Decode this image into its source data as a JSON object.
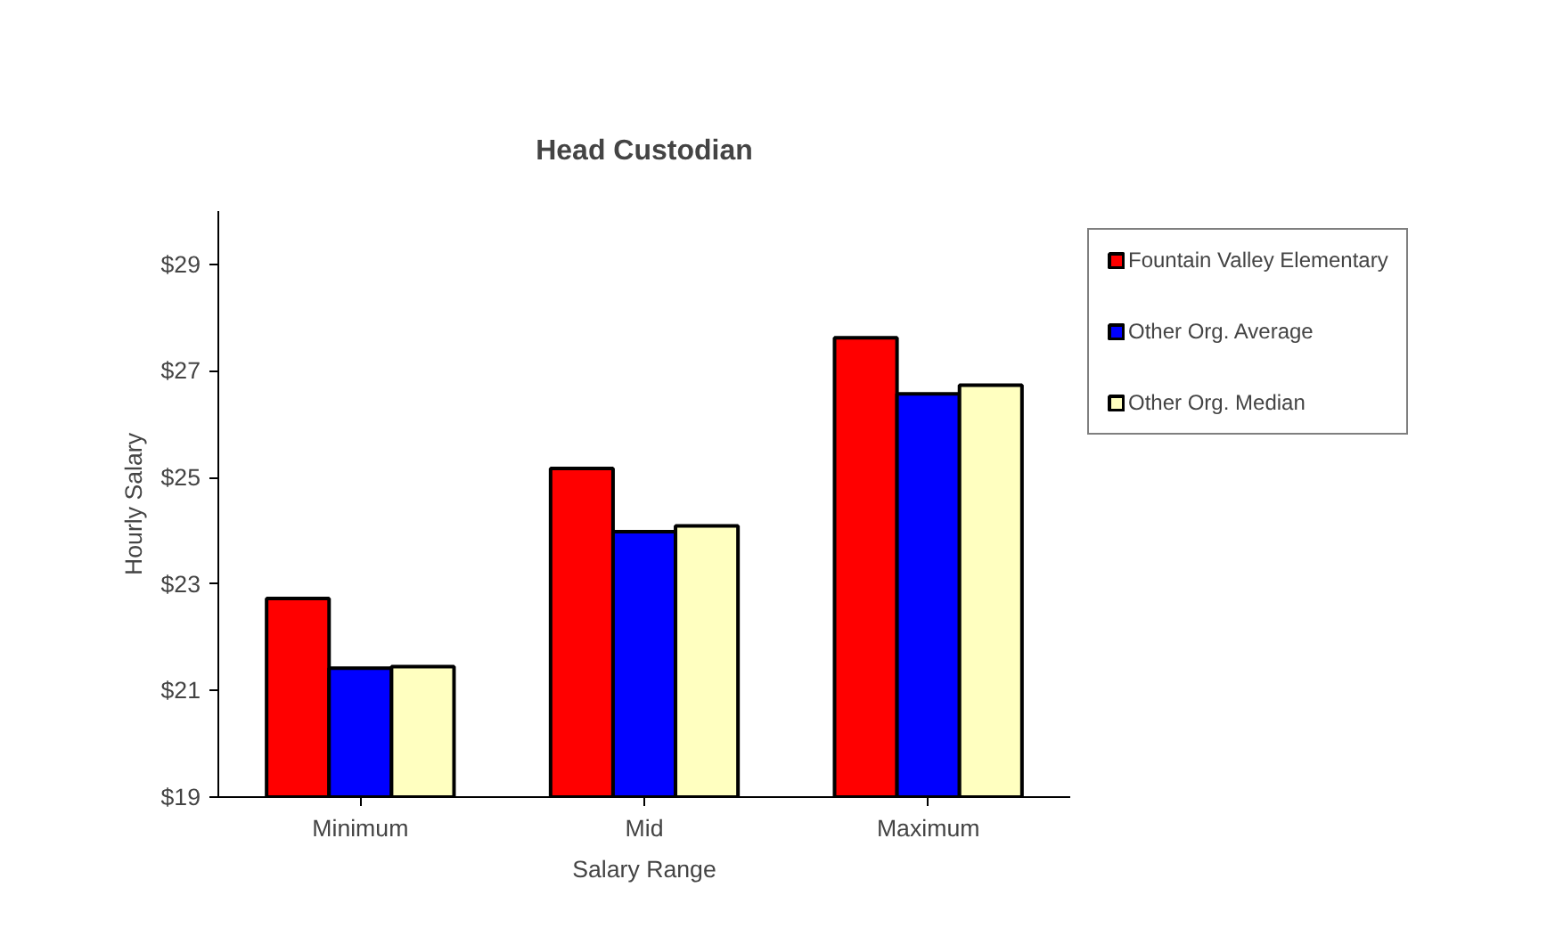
{
  "chart_data": {
    "type": "bar",
    "title": "Head Custodian",
    "xlabel": "Salary Range",
    "ylabel": "Hourly Salary",
    "categories": [
      "Minimum",
      "Mid",
      "Maximum"
    ],
    "series": [
      {
        "name": "Fountain Valley Elementary",
        "color": "#ff0000",
        "values": [
          22.73,
          25.17,
          27.62
        ]
      },
      {
        "name": "Other Org. Average",
        "color": "#0000ff",
        "values": [
          21.42,
          23.98,
          26.57
        ]
      },
      {
        "name": "Other Org. Median",
        "color": "#ffffc0",
        "values": [
          21.45,
          24.09,
          26.73
        ]
      }
    ],
    "ylim": [
      19,
      30
    ],
    "yticks": [
      {
        "value": 19,
        "label": "$19"
      },
      {
        "value": 21,
        "label": "$21"
      },
      {
        "value": 23,
        "label": "$23"
      },
      {
        "value": 25,
        "label": "$25"
      },
      {
        "value": 27,
        "label": "$27"
      },
      {
        "value": 29,
        "label": "$29"
      }
    ],
    "grid": false,
    "legend": "right"
  }
}
